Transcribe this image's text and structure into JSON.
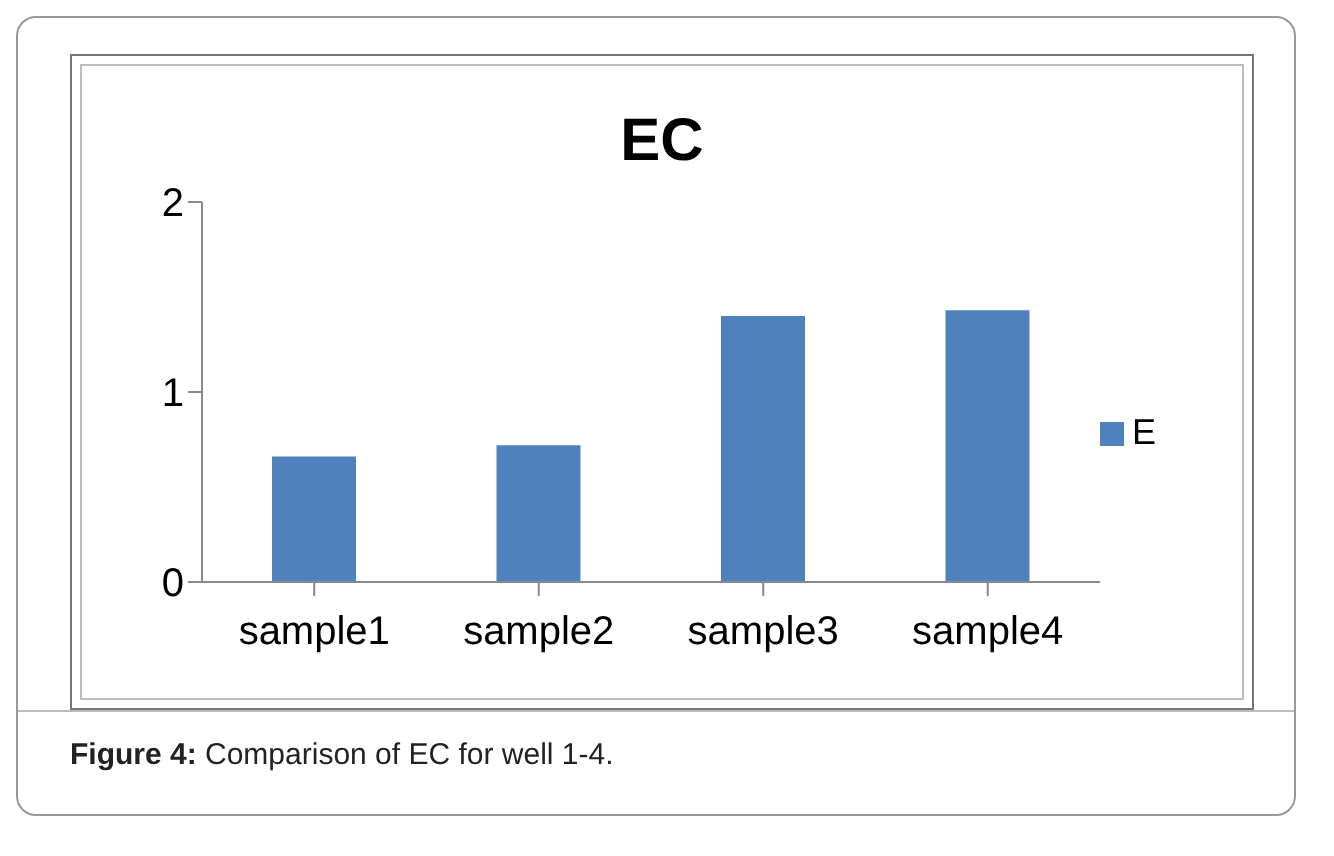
{
  "chart_data": {
    "type": "bar",
    "title": "EC",
    "categories": [
      "sample1",
      "sample2",
      "sample3",
      "sample4"
    ],
    "series": [
      {
        "name": "E",
        "color": "#4f81bd",
        "values": [
          0.66,
          0.72,
          1.4,
          1.43
        ]
      }
    ],
    "ylim": [
      0,
      2
    ],
    "yticks": [
      0,
      1,
      2
    ],
    "grid": false,
    "legend": "right",
    "annotations": [
      "Figure 4: Comparison of EC for well 1-4."
    ]
  }
}
